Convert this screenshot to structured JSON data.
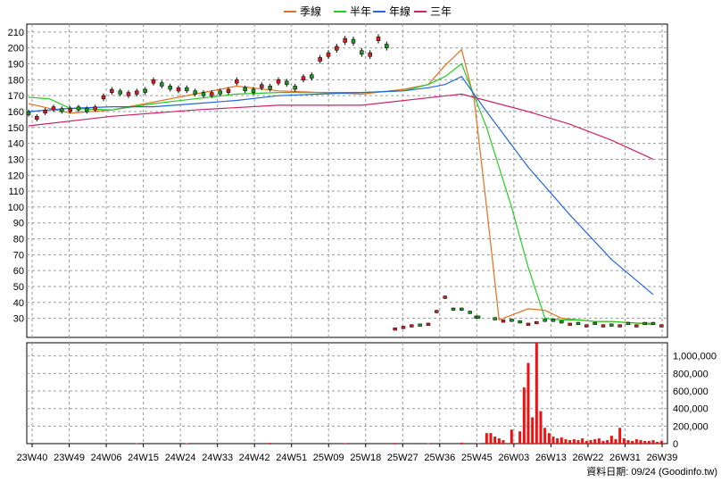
{
  "legend": {
    "items": [
      {
        "label": "季線",
        "color": "#e07020"
      },
      {
        "label": "半年",
        "color": "#22cc22"
      },
      {
        "label": "年線",
        "color": "#2266dd"
      },
      {
        "label": "三年",
        "color": "#cc2266"
      }
    ]
  },
  "footer": "資料日期: 09/24 (Goodinfo.tw)",
  "chart_data": {
    "type": "candlestick_with_volume",
    "x_categories": [
      "23W40",
      "23W49",
      "24W06",
      "24W15",
      "24W24",
      "24W33",
      "24W42",
      "24W51",
      "25W09",
      "25W18",
      "25W27",
      "25W36",
      "25W45",
      "26W03",
      "26W13",
      "26W22",
      "26W31",
      "26W39"
    ],
    "price_axis": {
      "ylim": [
        18,
        215
      ],
      "ticks": [
        30,
        40,
        50,
        60,
        70,
        80,
        90,
        100,
        110,
        120,
        130,
        140,
        150,
        160,
        170,
        180,
        190,
        200,
        210
      ]
    },
    "volume_axis": {
      "ylim": [
        0,
        1150000
      ],
      "ticks": [
        0,
        200000,
        400000,
        600000,
        800000,
        1000000
      ],
      "tick_labels": [
        "0",
        "200,000",
        "400,000",
        "600,000",
        "800,000",
        "1,000,000"
      ]
    },
    "grid": true,
    "legend_position": "top-center",
    "candles": {
      "t": [
        0,
        2,
        4,
        6,
        8,
        10,
        12,
        14,
        16,
        18,
        20,
        22,
        24,
        26,
        28,
        30,
        32,
        34,
        36,
        38,
        40,
        42,
        44,
        46,
        48,
        50,
        52,
        54,
        56,
        58,
        60,
        62,
        64,
        66,
        68,
        70,
        72,
        74,
        76,
        78,
        80,
        82,
        84,
        86,
        88,
        90,
        92,
        94,
        96,
        98,
        100,
        102,
        104,
        106,
        107.5,
        108,
        112,
        114,
        116,
        118,
        120,
        122,
        124,
        126,
        128,
        130,
        132,
        134,
        136,
        138,
        140,
        142,
        144,
        146,
        148,
        150,
        152
      ],
      "close": [
        158,
        157,
        161,
        163,
        160,
        162,
        161,
        160,
        163,
        170,
        174,
        171,
        172,
        173,
        172,
        180,
        176,
        174,
        175,
        173,
        171,
        170,
        172,
        171,
        174,
        180,
        173,
        172,
        177,
        174,
        180,
        177,
        174,
        182,
        181,
        194,
        197,
        201,
        206,
        203,
        196,
        197,
        207,
        200,
        24,
        25,
        26,
        25,
        27,
        35,
        44,
        35,
        35,
        33,
        30,
        30,
        29,
        29,
        28,
        27,
        27,
        28,
        28,
        28,
        27,
        27,
        26,
        26,
        26,
        26,
        25,
        26,
        26,
        26,
        26,
        26,
        26
      ],
      "dir": [
        -1,
        1,
        1,
        1,
        -1,
        1,
        -1,
        -1,
        1,
        1,
        1,
        -1,
        1,
        1,
        -1,
        1,
        -1,
        -1,
        1,
        -1,
        -1,
        -1,
        1,
        -1,
        1,
        1,
        -1,
        -1,
        1,
        -1,
        1,
        -1,
        -1,
        1,
        -1,
        1,
        1,
        1,
        1,
        -1,
        -1,
        1,
        1,
        -1,
        1,
        1,
        1,
        -1,
        1,
        1,
        1,
        -1,
        -1,
        -1,
        -1,
        -1,
        -1,
        1,
        -1,
        -1,
        1,
        1,
        -1,
        -1,
        -1,
        1,
        -1,
        1,
        -1,
        1,
        -1,
        1,
        -1,
        1,
        -1,
        -1,
        1
      ]
    },
    "series": [
      {
        "name": "季線",
        "color": "#e07020",
        "t": [
          0,
          10,
          20,
          30,
          40,
          50,
          60,
          70,
          80,
          90,
          96,
          100,
          104,
          107,
          110,
          113,
          116,
          120,
          124,
          128,
          132,
          136,
          140,
          146,
          150
        ],
        "values": [
          165,
          159,
          161,
          166,
          171,
          176,
          173,
          172,
          171,
          174,
          177,
          189,
          199,
          168,
          100,
          29,
          32,
          36,
          35,
          30,
          29,
          28,
          28,
          27,
          26
        ]
      },
      {
        "name": "半年",
        "color": "#22cc22",
        "t": [
          0,
          5,
          10,
          20,
          30,
          40,
          50,
          60,
          70,
          80,
          90,
          96,
          100,
          104,
          110,
          116,
          120,
          124,
          128,
          132,
          136,
          140,
          146,
          150
        ],
        "values": [
          169,
          168,
          162,
          161,
          165,
          168,
          171,
          172,
          172,
          172,
          173,
          177,
          182,
          190,
          150,
          100,
          62,
          30,
          29,
          29,
          28,
          28,
          27,
          27
        ]
      },
      {
        "name": "年線",
        "color": "#2266dd",
        "t": [
          0,
          10,
          20,
          30,
          40,
          50,
          60,
          70,
          80,
          90,
          96,
          100,
          104,
          110,
          120,
          130,
          140,
          150
        ],
        "values": [
          160,
          162,
          163,
          163,
          165,
          167,
          170,
          171,
          172,
          173,
          175,
          177,
          182,
          160,
          125,
          95,
          67,
          45
        ]
      },
      {
        "name": "三年",
        "color": "#cc2266",
        "t": [
          0,
          20,
          40,
          60,
          80,
          104,
          120,
          130,
          140,
          150
        ],
        "values": [
          151,
          157,
          161,
          164,
          164,
          171,
          160,
          152,
          142,
          130
        ]
      }
    ],
    "volume_bars": {
      "t": [
        26,
        38,
        58,
        76,
        88,
        96,
        104,
        108,
        110,
        111,
        112,
        113,
        114,
        116,
        118,
        119,
        120,
        121,
        122,
        123,
        124,
        125,
        126,
        127,
        128,
        129,
        130,
        131,
        132,
        133,
        134,
        135,
        136,
        137,
        138,
        139,
        140,
        141,
        142,
        143,
        144,
        145,
        146,
        147,
        148,
        149,
        150,
        151,
        152
      ],
      "values": [
        4000,
        5000,
        9000,
        6000,
        8000,
        4000,
        12000,
        3000,
        120000,
        120000,
        80000,
        60000,
        40000,
        160000,
        140000,
        640000,
        920000,
        300000,
        1150000,
        370000,
        180000,
        120000,
        80000,
        60000,
        70000,
        50000,
        40000,
        50000,
        40000,
        60000,
        30000,
        40000,
        50000,
        60000,
        30000,
        40000,
        90000,
        50000,
        180000,
        60000,
        40000,
        30000,
        50000,
        40000,
        30000,
        30000,
        40000,
        20000,
        30000
      ]
    }
  }
}
